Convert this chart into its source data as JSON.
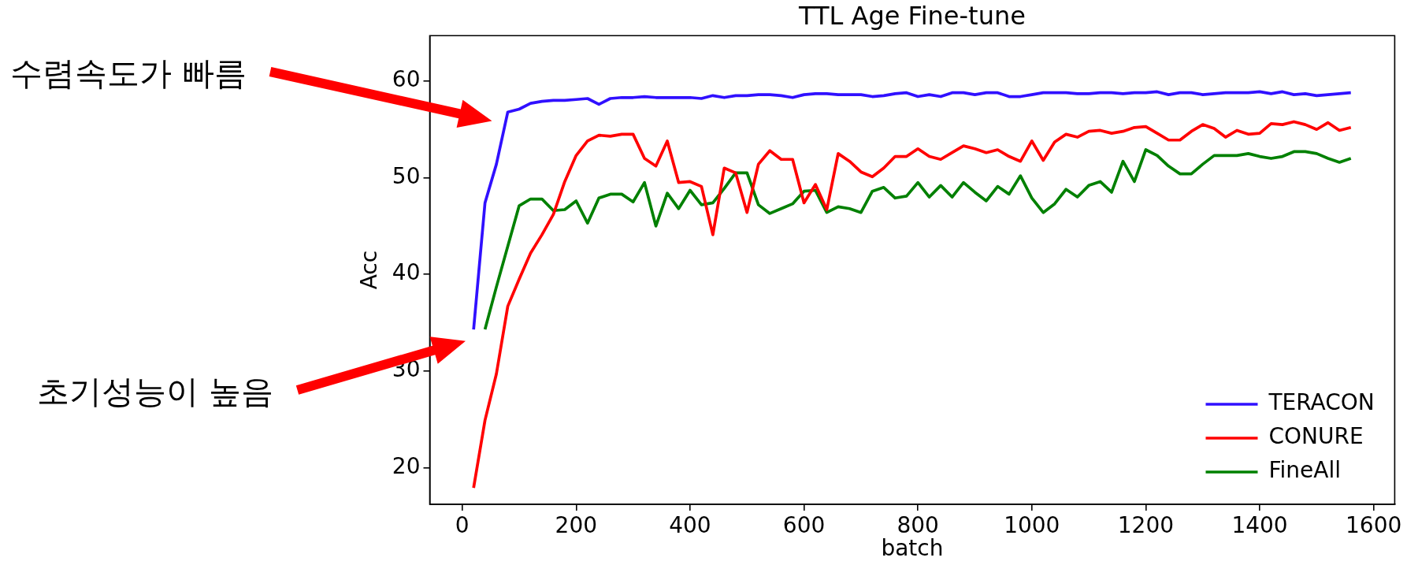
{
  "chart_data": {
    "type": "line",
    "title": "TTL Age Fine-tune",
    "xlabel": "batch",
    "ylabel": "Acc",
    "x": [
      20,
      40,
      60,
      80,
      100,
      120,
      140,
      160,
      180,
      200,
      220,
      240,
      260,
      280,
      300,
      320,
      340,
      360,
      380,
      400,
      420,
      440,
      460,
      480,
      500,
      520,
      540,
      560,
      580,
      600,
      620,
      640,
      660,
      680,
      700,
      720,
      740,
      760,
      780,
      800,
      820,
      840,
      860,
      880,
      900,
      920,
      940,
      960,
      980,
      1000,
      1020,
      1040,
      1060,
      1080,
      1100,
      1120,
      1140,
      1160,
      1180,
      1200,
      1220,
      1240,
      1260,
      1280,
      1300,
      1320,
      1340,
      1360,
      1380,
      1400,
      1420,
      1440,
      1460,
      1480,
      1500,
      1520,
      1540,
      1560
    ],
    "series": [
      {
        "name": "TERACON",
        "color": "#3010ff",
        "values": [
          34.3,
          47.4,
          51.4,
          56.8,
          57.1,
          57.7,
          57.9,
          58.0,
          58.0,
          58.1,
          58.2,
          57.6,
          58.2,
          58.3,
          58.3,
          58.4,
          58.3,
          58.3,
          58.3,
          58.3,
          58.2,
          58.5,
          58.3,
          58.5,
          58.5,
          58.6,
          58.6,
          58.5,
          58.3,
          58.6,
          58.7,
          58.7,
          58.6,
          58.6,
          58.6,
          58.4,
          58.5,
          58.7,
          58.8,
          58.4,
          58.6,
          58.4,
          58.8,
          58.8,
          58.6,
          58.8,
          58.8,
          58.4,
          58.4,
          58.6,
          58.8,
          58.8,
          58.8,
          58.7,
          58.7,
          58.8,
          58.8,
          58.7,
          58.8,
          58.8,
          58.9,
          58.6,
          58.8,
          58.8,
          58.6,
          58.7,
          58.8,
          58.8,
          58.8,
          58.9,
          58.7,
          58.9,
          58.6,
          58.7,
          58.5,
          58.6,
          58.7,
          58.8
        ]
      },
      {
        "name": "CONURE",
        "color": "#ff0000",
        "values": [
          17.9,
          24.9,
          29.7,
          36.7,
          39.5,
          42.2,
          44.1,
          46.2,
          49.6,
          52.3,
          53.8,
          54.4,
          54.3,
          54.5,
          54.5,
          52.0,
          51.2,
          53.8,
          49.5,
          49.6,
          49.1,
          44.1,
          51.0,
          50.5,
          46.4,
          51.4,
          52.8,
          51.9,
          51.9,
          47.4,
          49.3,
          46.7,
          52.5,
          51.7,
          50.6,
          50.1,
          51.0,
          52.2,
          52.2,
          53.0,
          52.2,
          51.9,
          52.6,
          53.3,
          53.0,
          52.6,
          52.9,
          52.2,
          51.7,
          53.8,
          51.8,
          53.7,
          54.5,
          54.2,
          54.8,
          54.9,
          54.6,
          54.8,
          55.2,
          55.3,
          54.6,
          53.9,
          53.9,
          54.8,
          55.5,
          55.1,
          54.2,
          54.9,
          54.5,
          54.6,
          55.6,
          55.5,
          55.8,
          55.5,
          55.0,
          55.7,
          54.9,
          55.2
        ]
      },
      {
        "name": "FineAll",
        "color": "#008000",
        "values": [
          null,
          34.3,
          38.7,
          42.9,
          47.1,
          47.8,
          47.8,
          46.6,
          46.7,
          47.6,
          45.3,
          47.9,
          48.3,
          48.3,
          47.5,
          49.5,
          45.0,
          48.4,
          46.8,
          48.7,
          47.2,
          47.4,
          48.9,
          50.5,
          50.5,
          47.2,
          46.3,
          46.8,
          47.3,
          48.6,
          48.7,
          46.4,
          47.0,
          46.8,
          46.4,
          48.6,
          49.0,
          47.9,
          48.1,
          49.5,
          48.0,
          49.2,
          48.0,
          49.5,
          48.5,
          47.6,
          49.1,
          48.3,
          50.2,
          47.9,
          46.4,
          47.3,
          48.8,
          48.0,
          49.2,
          49.6,
          48.5,
          51.7,
          49.6,
          52.9,
          52.3,
          51.2,
          50.4,
          50.4,
          51.4,
          52.3,
          52.3,
          52.3,
          52.5,
          52.2,
          52.0,
          52.2,
          52.7,
          52.7,
          52.5,
          52.0,
          51.6,
          52.0
        ]
      }
    ],
    "xlim": [
      -57,
      1637
    ],
    "ylim": [
      16.2,
      64.7
    ],
    "xticks": [
      0,
      200,
      400,
      600,
      800,
      1000,
      1200,
      1400,
      1600
    ],
    "yticks": [
      20,
      30,
      40,
      50,
      60
    ],
    "legend": "bottom right",
    "annotations": [
      "수렴속도가 빠름",
      "초기성능이 높음"
    ]
  }
}
